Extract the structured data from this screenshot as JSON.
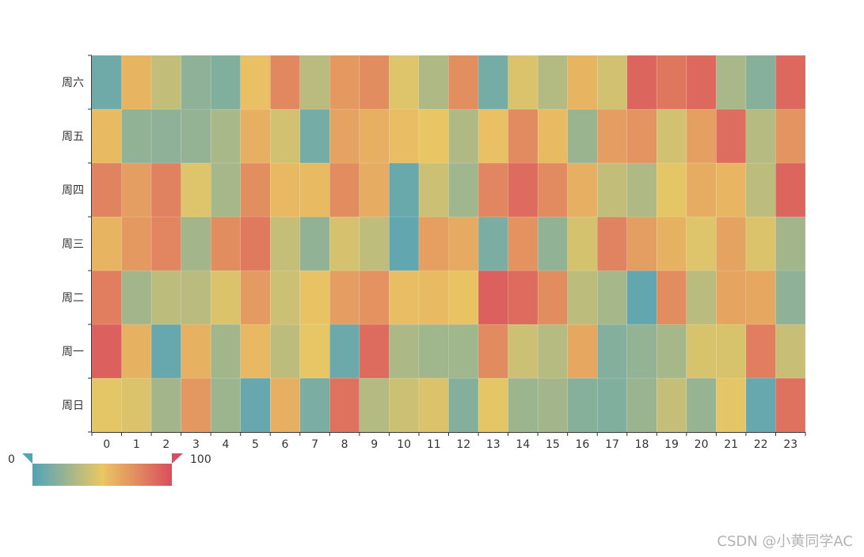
{
  "chart_data": {
    "type": "heatmap",
    "x_categories": [
      "0",
      "1",
      "2",
      "3",
      "4",
      "5",
      "6",
      "7",
      "8",
      "9",
      "10",
      "11",
      "12",
      "13",
      "14",
      "15",
      "16",
      "17",
      "18",
      "19",
      "20",
      "21",
      "22",
      "23"
    ],
    "y_categories": [
      "周日",
      "周一",
      "周二",
      "周三",
      "周四",
      "周五",
      "周六"
    ],
    "values": [
      [
        48,
        45,
        27,
        70,
        25,
        7,
        60,
        14,
        85,
        32,
        40,
        45,
        17,
        48,
        25,
        27,
        18,
        16,
        24,
        38,
        23,
        48,
        7,
        85
      ],
      [
        92,
        59,
        7,
        59,
        27,
        56,
        35,
        49,
        9,
        88,
        30,
        26,
        26,
        75,
        40,
        33,
        63,
        17,
        22,
        28,
        44,
        44,
        80,
        39
      ],
      [
        80,
        27,
        35,
        34,
        45,
        68,
        40,
        52,
        67,
        72,
        54,
        55,
        52,
        92,
        88,
        74,
        35,
        28,
        6,
        74,
        34,
        64,
        63,
        20
      ],
      [
        58,
        69,
        77,
        27,
        74,
        82,
        38,
        21,
        43,
        36,
        6,
        66,
        62,
        14,
        72,
        21,
        43,
        78,
        67,
        59,
        46,
        65,
        45,
        27
      ],
      [
        78,
        67,
        79,
        46,
        28,
        73,
        56,
        55,
        74,
        61,
        8,
        40,
        26,
        77,
        88,
        75,
        60,
        37,
        31,
        48,
        61,
        57,
        35,
        90
      ],
      [
        55,
        21,
        20,
        22,
        29,
        60,
        42,
        12,
        65,
        60,
        54,
        51,
        31,
        53,
        75,
        55,
        24,
        67,
        71,
        42,
        66,
        87,
        33,
        71
      ],
      [
        10,
        58,
        37,
        20,
        16,
        53,
        76,
        34,
        69,
        74,
        46,
        31,
        73,
        12,
        45,
        32,
        58,
        42,
        90,
        83,
        89,
        29,
        18,
        89
      ]
    ],
    "visual_map": {
      "min": 0,
      "max": 100,
      "min_label": "0",
      "max_label": "100",
      "orientation": "horizontal"
    },
    "color_range": [
      "#50a3ba",
      "#eac763",
      "#d94e5d"
    ],
    "title": "",
    "xlabel": "",
    "ylabel": ""
  },
  "watermark": "CSDN @小黄同学AC"
}
